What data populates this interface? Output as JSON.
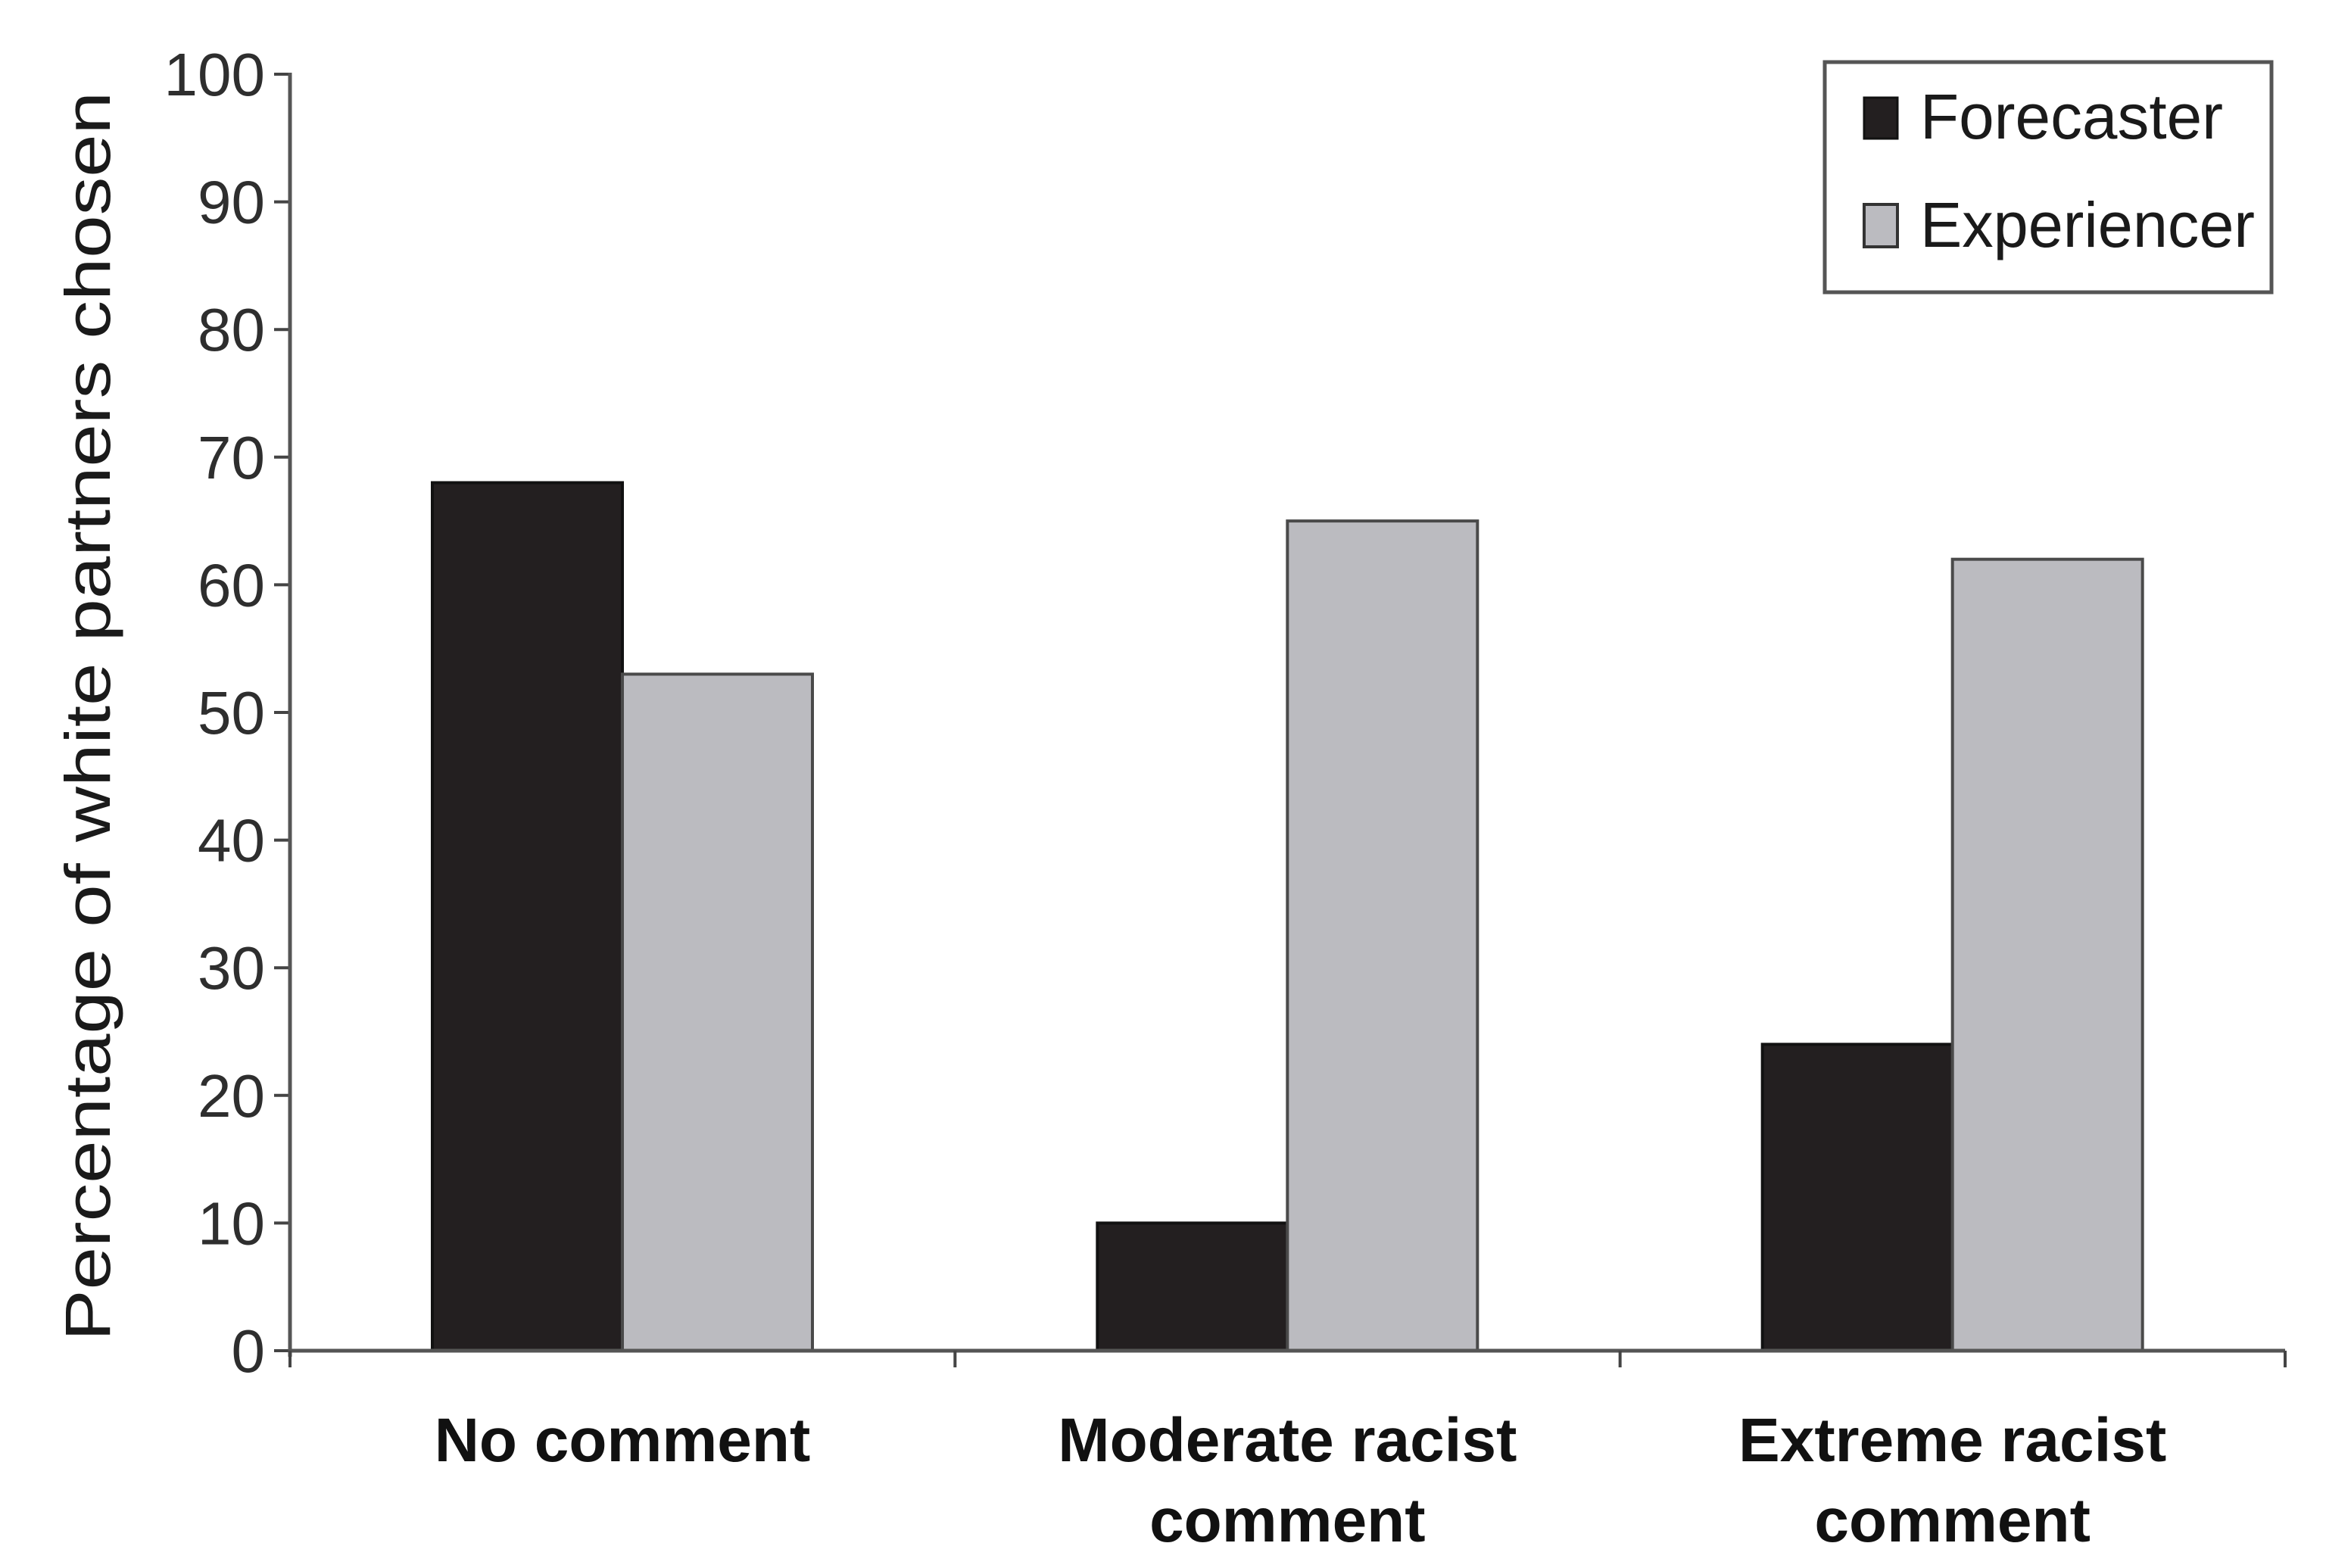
{
  "chart_data": {
    "type": "bar",
    "title": "",
    "xlabel": "",
    "ylabel": "Percentage of white partners chosen",
    "ylim": [
      0,
      100
    ],
    "yticks": [
      0,
      10,
      20,
      30,
      40,
      50,
      60,
      70,
      80,
      90,
      100
    ],
    "grid": false,
    "legend_position": "top-right",
    "categories": [
      "No comment",
      "Moderate racist comment",
      "Extreme racist comment"
    ],
    "category_lines": [
      [
        "No comment"
      ],
      [
        "Moderate racist",
        "comment"
      ],
      [
        "Extreme racist",
        "comment"
      ]
    ],
    "series": [
      {
        "name": "Forecaster",
        "color": "#231f20",
        "values": [
          68,
          10,
          24
        ]
      },
      {
        "name": "Experiencer",
        "color": "#bbbbc0",
        "values": [
          53,
          65,
          62
        ]
      }
    ]
  },
  "legend": {
    "items": [
      {
        "label": "Forecaster",
        "color": "#231f20"
      },
      {
        "label": "Experiencer",
        "color": "#bbbbc0"
      }
    ]
  }
}
